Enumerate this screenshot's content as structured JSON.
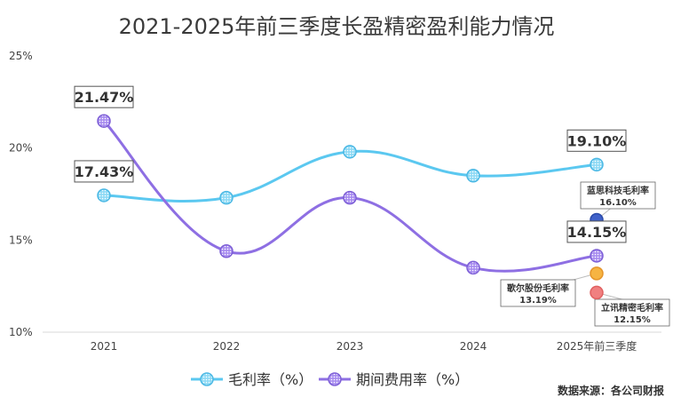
{
  "chart_data": {
    "type": "line",
    "title": "2021-2025年前三季度长盈精密盈利能力情况",
    "categories": [
      "2021",
      "2022",
      "2023",
      "2024",
      "2025年前三季度"
    ],
    "y_ticks": [
      "25%",
      "20%",
      "15%",
      "10%"
    ],
    "ylim": [
      10,
      25
    ],
    "grid": false,
    "legend_position": "bottom",
    "series": [
      {
        "name": "毛利率（%）",
        "values": [
          17.43,
          17.3,
          19.8,
          18.5,
          19.1
        ],
        "color": "#5bc8f0",
        "labels": {
          "0": "17.43%",
          "4": "19.10%"
        }
      },
      {
        "name": "期间费用率（%）",
        "values": [
          21.47,
          14.4,
          17.3,
          13.5,
          14.15
        ],
        "color": "#8e6fe3",
        "labels": {
          "0": "21.47%",
          "4": "14.15%"
        }
      }
    ],
    "peer_points": [
      {
        "name": "蓝思科技毛利率",
        "value": 16.1,
        "value_label": "16.10%",
        "color": "#3f61c9",
        "border": "#2a4aa8"
      },
      {
        "name": "歌尔股份毛利率",
        "value": 13.19,
        "value_label": "13.19%",
        "color": "#f6b442",
        "border": "#e5952a"
      },
      {
        "name": "立讯精密毛利率",
        "value": 12.15,
        "value_label": "12.15%",
        "color": "#f08080",
        "border": "#e06060"
      }
    ],
    "source": "数据来源：各公司财报"
  }
}
